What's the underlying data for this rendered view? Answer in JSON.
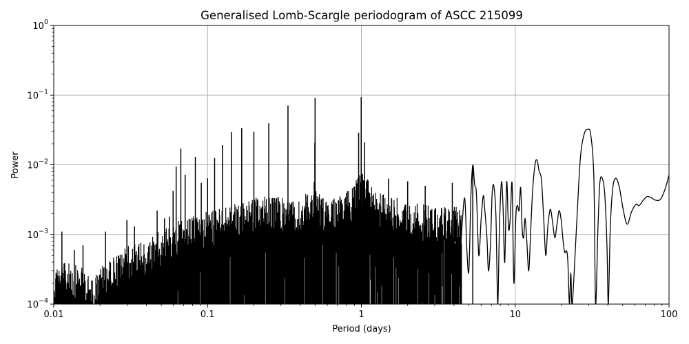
{
  "chart_data": {
    "type": "line",
    "title": "Generalised Lomb-Scargle periodogram of ASCC 215099",
    "xlabel": "Period (days)",
    "ylabel": "Power",
    "xscale": "log",
    "yscale": "log",
    "xlim": [
      0.01,
      100
    ],
    "ylim": [
      0.0001,
      1
    ],
    "grid": true,
    "legend": null,
    "line_color": "#000000",
    "grid_color": "#b0b0b0",
    "x_ticks": [
      {
        "value": 0.01,
        "label": "0.01"
      },
      {
        "value": 0.1,
        "label": "0.1"
      },
      {
        "value": 1,
        "label": "1"
      },
      {
        "value": 10,
        "label": "10"
      },
      {
        "value": 100,
        "label": "100"
      }
    ],
    "y_ticks": [
      {
        "value": 0.0001,
        "base": "10",
        "exp": "−4"
      },
      {
        "value": 0.001,
        "base": "10",
        "exp": "−3"
      },
      {
        "value": 0.01,
        "base": "10",
        "exp": "−2"
      },
      {
        "value": 0.1,
        "base": "10",
        "exp": "−1"
      },
      {
        "value": 1,
        "base": "10",
        "exp": "0"
      }
    ],
    "noise_envelope": {
      "description": "Dense periodogram region; upper envelope of power vs period",
      "points": [
        [
          0.01,
          0.00035
        ],
        [
          0.012,
          0.0004
        ],
        [
          0.015,
          0.00035
        ],
        [
          0.018,
          0.00022
        ],
        [
          0.02,
          0.00035
        ],
        [
          0.025,
          0.0005
        ],
        [
          0.03,
          0.0007
        ],
        [
          0.04,
          0.0008
        ],
        [
          0.05,
          0.0012
        ],
        [
          0.06,
          0.0015
        ],
        [
          0.08,
          0.0018
        ],
        [
          0.1,
          0.0022
        ],
        [
          0.15,
          0.0028
        ],
        [
          0.2,
          0.0035
        ],
        [
          0.3,
          0.0035
        ],
        [
          0.4,
          0.003
        ],
        [
          0.5,
          0.006
        ],
        [
          0.6,
          0.003
        ],
        [
          0.8,
          0.004
        ],
        [
          1.0,
          0.008
        ],
        [
          1.3,
          0.004
        ],
        [
          2.0,
          0.003
        ],
        [
          3.0,
          0.0025
        ],
        [
          4.5,
          0.0025
        ]
      ]
    },
    "peaks": [
      {
        "period": 0.0113,
        "power": 0.0011
      },
      {
        "period": 0.0136,
        "power": 0.0006
      },
      {
        "period": 0.0155,
        "power": 0.0007
      },
      {
        "period": 0.0217,
        "power": 0.0011
      },
      {
        "period": 0.0299,
        "power": 0.0016
      },
      {
        "period": 0.0335,
        "power": 0.0013
      },
      {
        "period": 0.047,
        "power": 0.0022
      },
      {
        "period": 0.0525,
        "power": 0.0017
      },
      {
        "period": 0.0565,
        "power": 0.0018
      },
      {
        "period": 0.0597,
        "power": 0.0042
      },
      {
        "period": 0.0625,
        "power": 0.0094
      },
      {
        "period": 0.067,
        "power": 0.0171
      },
      {
        "period": 0.0715,
        "power": 0.0072
      },
      {
        "period": 0.0833,
        "power": 0.013
      },
      {
        "period": 0.091,
        "power": 0.0055
      },
      {
        "period": 0.1,
        "power": 0.0064
      },
      {
        "period": 0.1111,
        "power": 0.0125
      },
      {
        "period": 0.125,
        "power": 0.0191
      },
      {
        "period": 0.1428,
        "power": 0.0294
      },
      {
        "period": 0.1667,
        "power": 0.0336
      },
      {
        "period": 0.2,
        "power": 0.0298
      },
      {
        "period": 0.25,
        "power": 0.0393
      },
      {
        "period": 0.3333,
        "power": 0.0708
      },
      {
        "period": 0.5,
        "power": 0.0912
      },
      {
        "period": 0.498,
        "power": 0.0206
      },
      {
        "period": 0.9973,
        "power": 0.0935
      },
      {
        "period": 0.96,
        "power": 0.029
      },
      {
        "period": 1.05,
        "power": 0.021
      },
      {
        "period": 1.5,
        "power": 0.0063
      },
      {
        "period": 2.0,
        "power": 0.0058
      },
      {
        "period": 2.6,
        "power": 0.005
      },
      {
        "period": 3.9,
        "power": 0.0055
      },
      {
        "period": 5.3,
        "power": 0.0099
      }
    ],
    "smooth_curve": {
      "description": "Resolved low-frequency part of periodogram",
      "points": [
        [
          4.3,
          0.0002
        ],
        [
          4.5,
          0.0012
        ],
        [
          4.7,
          0.0033
        ],
        [
          4.85,
          0.0006
        ],
        [
          5.0,
          0.0003
        ],
        [
          5.15,
          0.0035
        ],
        [
          5.3,
          0.0099
        ],
        [
          5.45,
          0.0052
        ],
        [
          5.6,
          0.0038
        ],
        [
          5.8,
          0.0005
        ],
        [
          6.0,
          0.0016
        ],
        [
          6.2,
          0.0036
        ],
        [
          6.35,
          0.0022
        ],
        [
          6.55,
          0.0009
        ],
        [
          6.7,
          0.0003
        ],
        [
          6.9,
          0.0007
        ],
        [
          7.1,
          0.0042
        ],
        [
          7.3,
          0.0046
        ],
        [
          7.5,
          0.0017
        ],
        [
          7.7,
          0.0001
        ],
        [
          7.9,
          0.0013
        ],
        [
          8.15,
          0.0057
        ],
        [
          8.35,
          0.0022
        ],
        [
          8.55,
          0.0004
        ],
        [
          8.8,
          0.0057
        ],
        [
          9.05,
          0.0012
        ],
        [
          9.3,
          0.0018
        ],
        [
          9.55,
          0.0053
        ],
        [
          9.8,
          0.0002
        ],
        [
          10.1,
          0.0018
        ],
        [
          10.35,
          0.0026
        ],
        [
          10.6,
          0.0022
        ],
        [
          10.85,
          0.0047
        ],
        [
          11.1,
          0.0012
        ],
        [
          11.35,
          0.0009
        ],
        [
          11.6,
          0.0017
        ],
        [
          11.9,
          0.0008
        ],
        [
          12.25,
          0.0003
        ],
        [
          12.6,
          0.0011
        ],
        [
          13.0,
          0.0045
        ],
        [
          13.5,
          0.0105
        ],
        [
          13.9,
          0.0115
        ],
        [
          14.3,
          0.0081
        ],
        [
          14.8,
          0.0062
        ],
        [
          15.3,
          0.0018
        ],
        [
          15.8,
          0.0005
        ],
        [
          16.3,
          0.0013
        ],
        [
          16.9,
          0.0023
        ],
        [
          17.5,
          0.0015
        ],
        [
          18.1,
          0.0009
        ],
        [
          18.7,
          0.0014
        ],
        [
          19.3,
          0.0022
        ],
        [
          19.9,
          0.0016
        ],
        [
          20.5,
          0.0008
        ],
        [
          21.0,
          0.00055
        ],
        [
          21.6,
          0.00058
        ],
        [
          22.0,
          0.0004
        ],
        [
          22.5,
          0.0001
        ],
        [
          23.0,
          0.00028
        ],
        [
          23.5,
          0.0001
        ],
        [
          25.0,
          0.0012
        ],
        [
          26.5,
          0.012
        ],
        [
          28.0,
          0.027
        ],
        [
          29.5,
          0.032
        ],
        [
          31.0,
          0.027
        ],
        [
          32.5,
          0.006
        ],
        [
          33.3,
          0.0001
        ],
        [
          34.5,
          0.0012
        ],
        [
          35.5,
          0.0055
        ],
        [
          36.8,
          0.0064
        ],
        [
          38.2,
          0.0038
        ],
        [
          39.5,
          0.0007
        ],
        [
          40.3,
          0.0001
        ],
        [
          41.5,
          0.0012
        ],
        [
          43.0,
          0.0045
        ],
        [
          45.0,
          0.0064
        ],
        [
          47.5,
          0.0048
        ],
        [
          50.5,
          0.0022
        ],
        [
          53.5,
          0.0014
        ],
        [
          57.0,
          0.0021
        ],
        [
          61.0,
          0.0027
        ],
        [
          64.0,
          0.0026
        ],
        [
          68.0,
          0.0031
        ],
        [
          72.0,
          0.0035
        ],
        [
          76.0,
          0.0034
        ],
        [
          82.0,
          0.0031
        ],
        [
          88.0,
          0.0032
        ],
        [
          94.0,
          0.0044
        ],
        [
          100.0,
          0.0071
        ]
      ]
    }
  }
}
